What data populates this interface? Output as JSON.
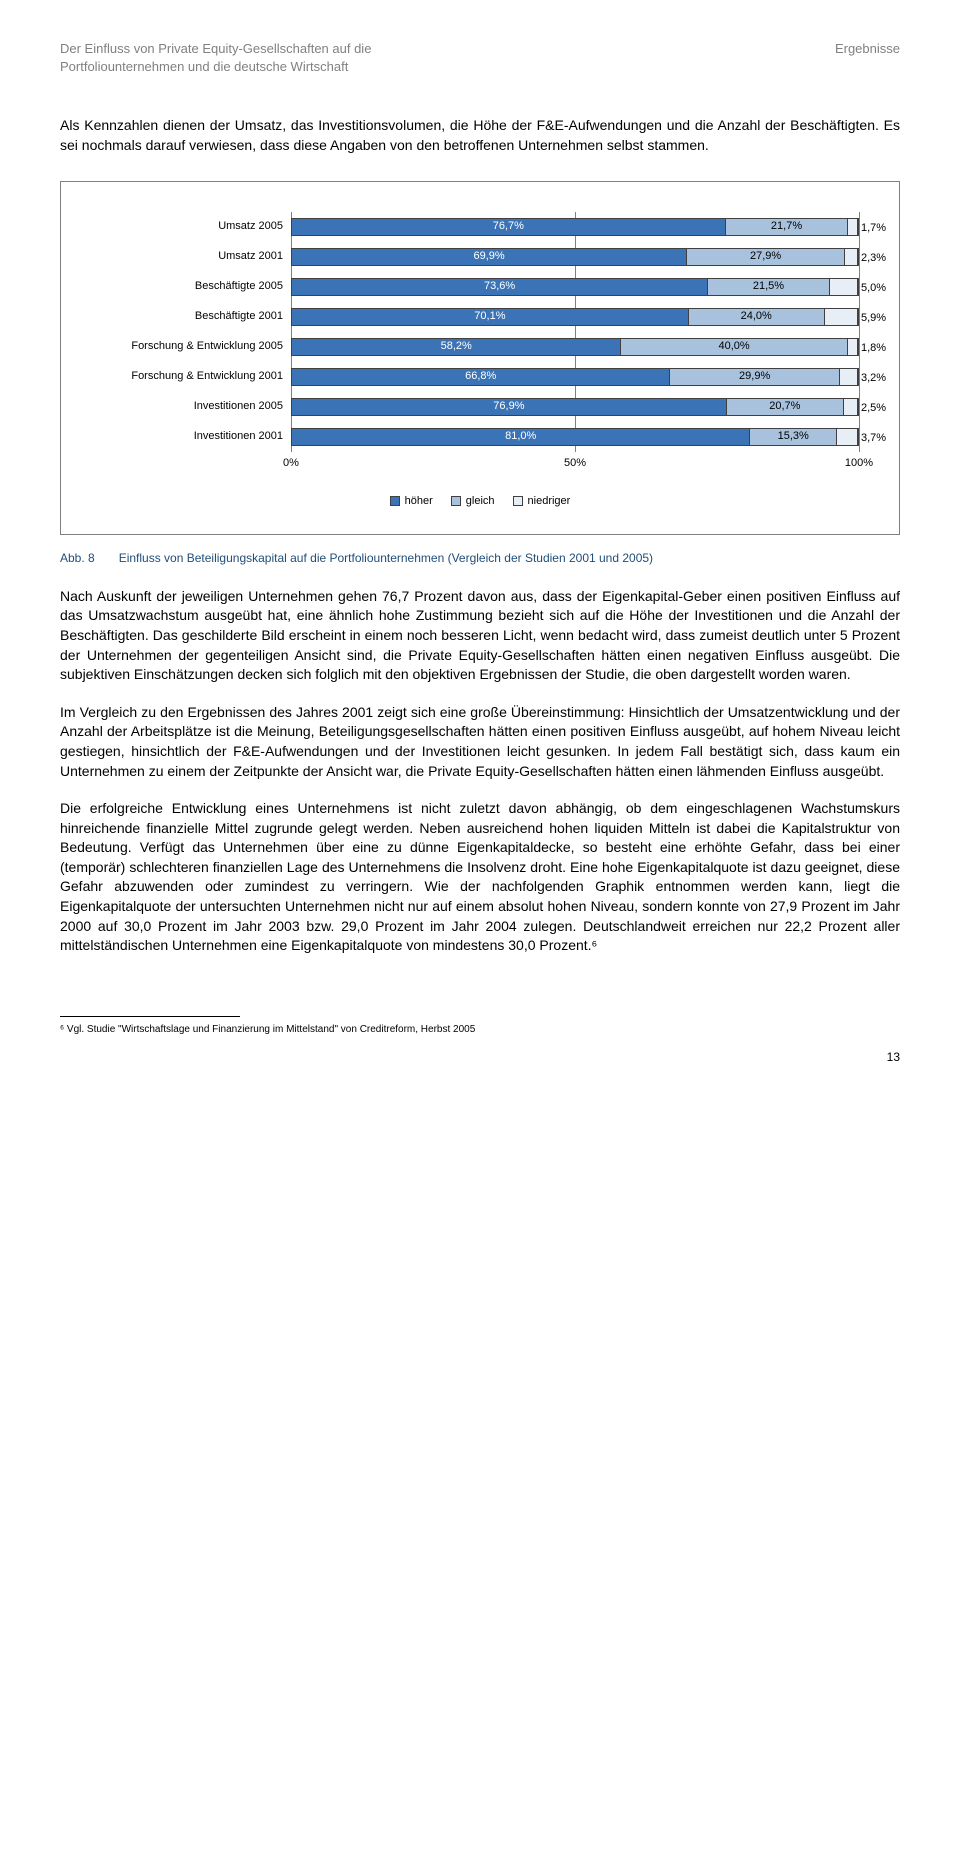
{
  "header": {
    "left": "Der Einfluss von Private Equity-Gesellschaften auf die Portfoliounternehmen und die deutsche Wirtschaft",
    "right": "Ergebnisse"
  },
  "intro": "Als Kennzahlen dienen der Umsatz, das Investitionsvolumen, die Höhe der F&E-Aufwendungen und die Anzahl der Beschäftigten. Es sei nochmals darauf verwiesen, dass diese Angaben von den betroffenen Unternehmen selbst stammen.",
  "chart": {
    "type": "stacked-bar-horizontal",
    "categories": [
      "Umsatz 2005",
      "Umsatz 2001",
      "Beschäftigte 2005",
      "Beschäftigte 2001",
      "Forschung & Entwicklung 2005",
      "Forschung & Entwicklung 2001",
      "Investitionen 2005",
      "Investitionen 2001"
    ],
    "series_names": [
      "höher",
      "gleich",
      "niedriger"
    ],
    "series_colors": [
      "#3b74b6",
      "#a8c2dd",
      "#e8eef6"
    ],
    "rows": [
      {
        "values": [
          76.7,
          21.7,
          1.7
        ],
        "labels": [
          "76,7%",
          "21,7%",
          "1,7%"
        ]
      },
      {
        "values": [
          69.9,
          27.9,
          2.3
        ],
        "labels": [
          "69,9%",
          "27,9%",
          "2,3%"
        ]
      },
      {
        "values": [
          73.6,
          21.5,
          5.0
        ],
        "labels": [
          "73,6%",
          "21,5%",
          "5,0%"
        ]
      },
      {
        "values": [
          70.1,
          24.0,
          5.9
        ],
        "labels": [
          "70,1%",
          "24,0%",
          "5,9%"
        ]
      },
      {
        "values": [
          58.2,
          40.0,
          1.8
        ],
        "labels": [
          "58,2%",
          "40,0%",
          "1,8%"
        ]
      },
      {
        "values": [
          66.8,
          29.9,
          3.2
        ],
        "labels": [
          "66,8%",
          "29,9%",
          "3,2%"
        ]
      },
      {
        "values": [
          76.9,
          20.7,
          2.5
        ],
        "labels": [
          "76,9%",
          "20,7%",
          "2,5%"
        ]
      },
      {
        "values": [
          81.0,
          15.3,
          3.7
        ],
        "labels": [
          "81,0%",
          "15,3%",
          "3,7%"
        ]
      }
    ],
    "x_ticks": [
      {
        "pos": 0,
        "label": "0%"
      },
      {
        "pos": 50,
        "label": "50%"
      },
      {
        "pos": 100,
        "label": "100%"
      }
    ],
    "legend_labels": [
      "höher",
      "gleich",
      "niedriger"
    ]
  },
  "caption": {
    "label": "Abb. 8",
    "text": "Einfluss von Beteiligungskapital auf die Portfoliounternehmen (Vergleich der Studien 2001 und 2005)"
  },
  "paragraphs": [
    "Nach Auskunft der jeweiligen Unternehmen gehen 76,7 Prozent davon aus, dass der Eigenkapital-Geber einen positiven Einfluss auf das Umsatzwachstum ausgeübt hat, eine ähnlich hohe Zustimmung bezieht sich auf die Höhe der Investitionen und die Anzahl der Beschäftigten. Das geschilderte Bild erscheint in einem noch besseren Licht, wenn bedacht wird, dass zumeist deutlich unter 5 Prozent der Unternehmen der gegenteiligen Ansicht sind, die Private Equity-Gesellschaften hätten einen negativen Einfluss ausgeübt. Die subjektiven Einschätzungen decken sich folglich mit den objektiven Ergebnissen der Studie, die oben dargestellt worden waren.",
    "Im Vergleich zu den Ergebnissen des Jahres 2001 zeigt sich eine große Übereinstimmung: Hinsichtlich der Umsatzentwicklung und der Anzahl der Arbeitsplätze ist die Meinung, Beteiligungsgesellschaften hätten einen positiven Einfluss ausgeübt, auf hohem Niveau leicht gestiegen, hinsichtlich der F&E-Aufwendungen und der Investitionen leicht gesunken. In jedem Fall bestätigt sich, dass kaum ein Unternehmen zu einem der Zeitpunkte der Ansicht war, die Private Equity-Gesellschaften hätten einen lähmenden Einfluss ausgeübt.",
    "Die erfolgreiche Entwicklung eines Unternehmens ist nicht zuletzt davon abhängig, ob dem eingeschlagenen Wachstumskurs hinreichende finanzielle Mittel zugrunde gelegt werden. Neben ausreichend hohen liquiden Mitteln ist dabei die Kapitalstruktur von Bedeutung. Verfügt das Unternehmen über eine zu dünne Eigenkapitaldecke, so besteht eine erhöhte Gefahr, dass bei einer (temporär) schlechteren finanziellen Lage des Unternehmens die Insolvenz droht. Eine hohe Eigenkapitalquote ist dazu geeignet, diese Gefahr abzuwenden oder zumindest zu verringern. Wie der nachfolgenden Graphik entnommen werden kann, liegt die Eigenkapitalquote der untersuchten Unternehmen nicht nur auf einem absolut hohen Niveau, sondern konnte von 27,9 Prozent im Jahr 2000 auf 30,0 Prozent im Jahr 2003 bzw. 29,0 Prozent im Jahr 2004 zulegen. Deutschlandweit erreichen nur 22,2 Prozent aller mittelständischen Unternehmen eine Eigenkapitalquote von mindestens 30,0 Prozent.⁶"
  ],
  "footnote": "⁶ Vgl. Studie \"Wirtschaftslage und Finanzierung im Mittelstand\" von Creditreform, Herbst 2005",
  "page_number": "13"
}
